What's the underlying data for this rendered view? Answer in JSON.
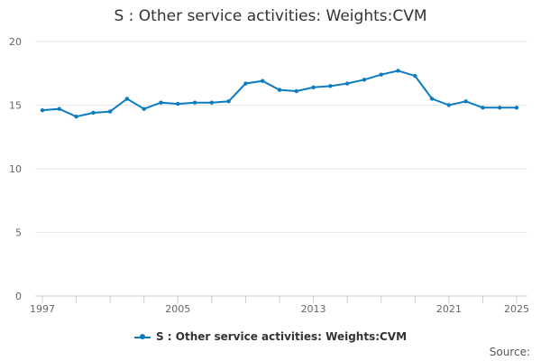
{
  "chart_data": {
    "type": "line",
    "title": "S : Other service activities: Weights:CVM",
    "xlabel": "",
    "ylabel": "",
    "x": [
      1997,
      1998,
      1999,
      2000,
      2001,
      2002,
      2003,
      2004,
      2005,
      2006,
      2007,
      2008,
      2009,
      2010,
      2011,
      2012,
      2013,
      2014,
      2015,
      2016,
      2017,
      2018,
      2019,
      2020,
      2021,
      2022,
      2023,
      2024,
      2025
    ],
    "x_ticks": [
      "1997",
      "2005",
      "2013",
      "2021",
      "2025"
    ],
    "xlim": [
      1997,
      2025
    ],
    "ylim": [
      0,
      20
    ],
    "y_ticks": [
      "0",
      "5",
      "10",
      "15",
      "20"
    ],
    "grid": true,
    "legend_position": "bottom",
    "series": [
      {
        "name": "S : Other service activities: Weights:CVM",
        "color": "#0b7cbf",
        "values": [
          14.6,
          14.7,
          14.1,
          14.4,
          14.5,
          15.5,
          14.7,
          15.2,
          15.1,
          15.2,
          15.2,
          15.3,
          16.7,
          16.9,
          16.2,
          16.1,
          16.4,
          16.5,
          16.7,
          17.0,
          17.4,
          17.7,
          17.3,
          15.5,
          15.0,
          15.3,
          14.8,
          14.8,
          14.8
        ]
      }
    ],
    "source_label": "Source:"
  }
}
